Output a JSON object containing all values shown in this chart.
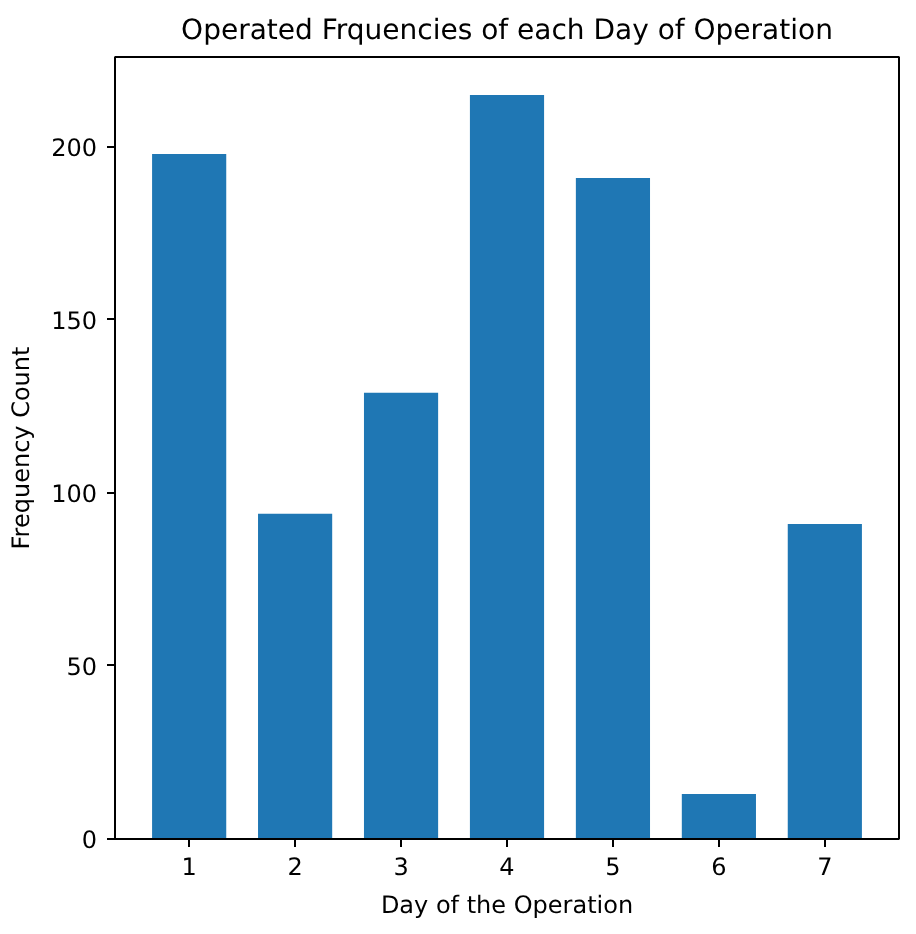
{
  "chart_data": {
    "type": "bar",
    "title": "Operated Frquencies of each Day of Operation",
    "xlabel": "Day of the Operation",
    "ylabel": "Frequency Count",
    "x": [
      1,
      2,
      3,
      4,
      5,
      6,
      7
    ],
    "values": [
      198,
      94,
      129,
      215,
      191,
      13,
      91
    ],
    "color": "#1f77b4",
    "xlim": [
      0.3,
      7.7
    ],
    "xticks": [
      1,
      2,
      3,
      4,
      5,
      6,
      7
    ],
    "ylim": [
      0,
      226
    ],
    "yticks": [
      0,
      50,
      100,
      150,
      200
    ],
    "grid": false
  }
}
